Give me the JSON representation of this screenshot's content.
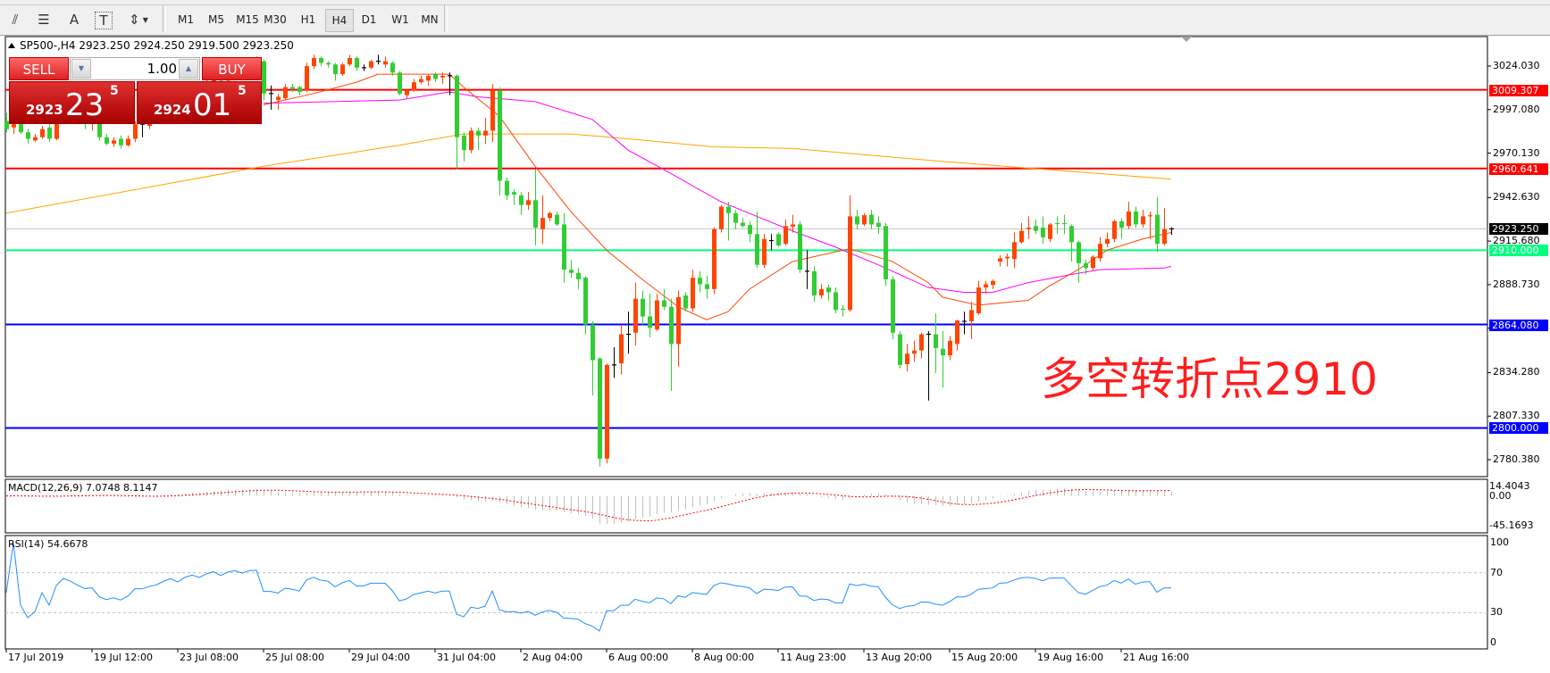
{
  "toolbar": {
    "icons": [
      "elliott-wave-icon",
      "fibonacci-icon",
      "text-icon",
      "text-label-icon",
      "arrows-icon"
    ],
    "icon_glyphs": [
      "⫽",
      "☰",
      "A",
      "T",
      "⇕"
    ],
    "timeframes": [
      "M1",
      "M5",
      "M15",
      "M30",
      "H1",
      "H4",
      "D1",
      "W1",
      "MN"
    ],
    "selected_timeframe": "H4"
  },
  "chart": {
    "symbol_header": "SP500-,H4  2923.250 2924.250 2919.500 2923.250",
    "colors": {
      "bull": "#ff4500",
      "bear": "#32cd32",
      "doji": "#000000",
      "ma_fast": "#ff4500",
      "ma_mid": "#ff00ff",
      "ma_slow": "#ffa500",
      "current_price": "#c0c0c0"
    },
    "price_axis": [
      "3024.030",
      "2997.080",
      "2970.130",
      "2942.630",
      "2915.680",
      "2888.730",
      "2861.780",
      "2834.280",
      "2807.330",
      "2780.380"
    ],
    "hlines": [
      {
        "price": 3009.307,
        "label": "3009.307",
        "color": "#ff0000"
      },
      {
        "price": 2960.641,
        "label": "2960.641",
        "color": "#ff0000"
      },
      {
        "price": 2923.25,
        "label": "2923.250",
        "color": "#000000",
        "line": "#c0c0c0"
      },
      {
        "price": 2910.0,
        "label": "2910.000",
        "color": "#00ff7f"
      },
      {
        "price": 2864.08,
        "label": "2864.080",
        "color": "#0000ff"
      },
      {
        "price": 2800.0,
        "label": "2800.000",
        "color": "#0000ff"
      }
    ],
    "annotation": "多空转折点2910",
    "time_labels": [
      "17 Jul 2019",
      "19 Jul 12:00",
      "23 Jul 08:00",
      "25 Jul 08:00",
      "29 Jul 04:00",
      "31 Jul 04:00",
      "2 Aug 04:00",
      "6 Aug 00:00",
      "8 Aug 00:00",
      "11 Aug 23:00",
      "13 Aug 20:00",
      "15 Aug 20:00",
      "19 Aug 16:00",
      "21 Aug 16:00"
    ]
  },
  "trade_panel": {
    "sell_label": "SELL",
    "buy_label": "BUY",
    "lot": "1.00",
    "sell_price_small": "2923",
    "sell_price_big": "23",
    "sell_price_sup": "5",
    "buy_price_small": "2924",
    "buy_price_big": "01",
    "buy_price_sup": "5"
  },
  "macd": {
    "title": "MACD(12,26,9) 7.0748 8.1147",
    "axis": [
      "14.4043",
      "0.00",
      "-45.1693"
    ],
    "range": [
      -45.1693,
      14.4043
    ]
  },
  "rsi": {
    "title": "RSI(14) 54.6678",
    "axis": [
      "100",
      "70",
      "30",
      "0"
    ],
    "levels": [
      70,
      30
    ]
  },
  "chart_data": {
    "type": "candlestick",
    "ylim": [
      2780.38,
      3024.03
    ],
    "ohlc": [
      [
        2990,
        2995,
        2983,
        2985
      ],
      [
        2986,
        2991,
        2982,
        2988
      ],
      [
        2988,
        2989,
        2982,
        2983
      ],
      [
        2983,
        2985,
        2976,
        2979
      ],
      [
        2978,
        2982,
        2977,
        2980
      ],
      [
        2980,
        2987,
        2979,
        2985
      ],
      [
        2986,
        2988,
        2977,
        2979
      ],
      [
        2979,
        2993,
        2978,
        2990
      ],
      [
        2990,
        3000,
        2988,
        2997
      ],
      [
        2997,
        3003,
        2992,
        2995
      ],
      [
        2995,
        2999,
        2989,
        2992
      ],
      [
        2992,
        2996,
        2985,
        2989
      ],
      [
        2989,
        2993,
        2984,
        2990
      ],
      [
        2990,
        2991,
        2978,
        2980
      ],
      [
        2980,
        2982,
        2975,
        2976
      ],
      [
        2976,
        2980,
        2974,
        2978
      ],
      [
        2979,
        2981,
        2973,
        2975
      ],
      [
        2975,
        2981,
        2974,
        2979
      ],
      [
        2979,
        2990,
        2977,
        2988
      ],
      [
        2988,
        2992,
        2980,
        2988
      ],
      [
        2987,
        2994,
        2985,
        2991
      ],
      [
        2991,
        2996,
        2989,
        2993
      ],
      [
        2993,
        3000,
        2991,
        2998
      ],
      [
        2998,
        3004,
        2995,
        3002
      ],
      [
        3002,
        3006,
        2996,
        2999
      ],
      [
        2999,
        3008,
        2998,
        3006
      ],
      [
        3006,
        3012,
        3003,
        3010
      ],
      [
        3010,
        3014,
        3005,
        3008
      ],
      [
        3008,
        3016,
        3007,
        3014
      ],
      [
        3014,
        3020,
        3011,
        3018
      ],
      [
        3018,
        3022,
        3012,
        3015
      ],
      [
        3015,
        3023,
        3014,
        3021
      ],
      [
        3021,
        3026,
        3018,
        3024
      ],
      [
        3024,
        3028,
        3019,
        3022
      ],
      [
        3022,
        3029,
        3020,
        3027
      ],
      [
        3027,
        3030,
        3024,
        3027.5
      ],
      [
        3027,
        3028,
        3003,
        3007
      ],
      [
        3007,
        3012,
        2997,
        3007
      ],
      [
        3003,
        3007,
        2997,
        3005
      ],
      [
        3004,
        3013,
        3003,
        3011
      ],
      [
        3011,
        3013,
        3008,
        3010
      ],
      [
        3011,
        3012,
        3006,
        3008
      ],
      [
        3009,
        3026,
        3008,
        3024
      ],
      [
        3024,
        3031,
        3022,
        3029
      ],
      [
        3029,
        3030,
        3024,
        3026
      ],
      [
        3026,
        3027,
        3023,
        3025
      ],
      [
        3025,
        3026,
        3015,
        3019
      ],
      [
        3019,
        3026,
        3018,
        3025
      ],
      [
        3025,
        3031,
        3024,
        3029
      ],
      [
        3029,
        3030,
        3021,
        3023
      ],
      [
        3023,
        3025,
        3021,
        3023
      ],
      [
        3023,
        3028,
        3022,
        3027
      ],
      [
        3027,
        3031,
        3025,
        3027
      ],
      [
        3025,
        3030,
        3023,
        3027
      ],
      [
        3026,
        3027,
        3018,
        3020
      ],
      [
        3020,
        3021,
        3006,
        3007
      ],
      [
        3006,
        3010,
        3004,
        3009
      ],
      [
        3009,
        3016,
        3008,
        3014
      ],
      [
        3014,
        3018,
        3013,
        3016
      ],
      [
        3015,
        3019,
        3012,
        3018
      ],
      [
        3019,
        3020,
        3014,
        3016
      ],
      [
        3017,
        3020,
        3013,
        3018
      ],
      [
        3018,
        3020,
        3006,
        3018
      ],
      [
        3018,
        3019,
        2960,
        2980
      ],
      [
        2981,
        2983,
        2965,
        2972
      ],
      [
        2972,
        2986,
        2970,
        2984
      ],
      [
        2984,
        2986,
        2972,
        2981
      ],
      [
        2981,
        2992,
        2976,
        2984
      ],
      [
        2984,
        3013,
        2977,
        3009
      ],
      [
        3009,
        3011,
        2944,
        2953
      ],
      [
        2953,
        2955,
        2941,
        2944
      ],
      [
        2946,
        2948,
        2938,
        2944.5
      ],
      [
        2944,
        2946,
        2932,
        2938
      ],
      [
        2938,
        2946,
        2935,
        2941
      ],
      [
        2941,
        2960,
        2913,
        2924
      ],
      [
        2923,
        2944,
        2914,
        2930
      ],
      [
        2930,
        2934,
        2928,
        2933
      ],
      [
        2932,
        2934,
        2925,
        2926
      ],
      [
        2926,
        2933,
        2890,
        2898
      ],
      [
        2898,
        2904,
        2893,
        2896
      ],
      [
        2896,
        2899,
        2886,
        2892
      ],
      [
        2893,
        2894,
        2858,
        2864
      ],
      [
        2864,
        2866,
        2820,
        2842
      ],
      [
        2843,
        2844,
        2776,
        2781
      ],
      [
        2781,
        2840,
        2778,
        2839
      ],
      [
        2839,
        2850,
        2831,
        2839
      ],
      [
        2840,
        2864,
        2833,
        2858
      ],
      [
        2858,
        2872,
        2846,
        2858
      ],
      [
        2859,
        2890,
        2851,
        2880
      ],
      [
        2880,
        2885,
        2864,
        2869
      ],
      [
        2869,
        2883,
        2856,
        2862
      ],
      [
        2861,
        2883,
        2860,
        2879
      ],
      [
        2879,
        2886,
        2873,
        2875
      ],
      [
        2875,
        2880,
        2823,
        2852
      ],
      [
        2852,
        2885,
        2838,
        2881
      ],
      [
        2882,
        2884,
        2872,
        2874
      ],
      [
        2874,
        2898,
        2872,
        2893
      ],
      [
        2893,
        2897,
        2884,
        2889
      ],
      [
        2889,
        2894,
        2880,
        2886
      ],
      [
        2886,
        2924,
        2883,
        2923
      ],
      [
        2923,
        2938,
        2921,
        2937
      ],
      [
        2937,
        2940,
        2916,
        2933
      ],
      [
        2933,
        2935,
        2923,
        2927
      ],
      [
        2927,
        2930,
        2924,
        2925
      ],
      [
        2925.6,
        2928,
        2915,
        2920
      ],
      [
        2920,
        2934,
        2899,
        2901
      ],
      [
        2901,
        2920,
        2899,
        2917
      ],
      [
        2916,
        2920,
        2910,
        2916
      ],
      [
        2920,
        2921,
        2912,
        2913
      ],
      [
        2914,
        2929,
        2913,
        2925
      ],
      [
        2924.6,
        2932,
        2921,
        2926
      ],
      [
        2926,
        2928,
        2896,
        2898
      ],
      [
        2897,
        2910,
        2886,
        2897
      ],
      [
        2897,
        2900,
        2878,
        2882
      ],
      [
        2882,
        2889,
        2880,
        2886
      ],
      [
        2887,
        2889,
        2879,
        2884
      ],
      [
        2884,
        2887,
        2871,
        2873
      ],
      [
        2873.5,
        2876,
        2869,
        2873
      ],
      [
        2873,
        2944,
        2872,
        2931
      ],
      [
        2931,
        2935,
        2923,
        2926
      ],
      [
        2926,
        2933,
        2925,
        2931.7
      ],
      [
        2932,
        2935,
        2923,
        2926
      ],
      [
        2927,
        2931,
        2920,
        2924.5
      ],
      [
        2925,
        2927,
        2888,
        2892
      ],
      [
        2892,
        2894,
        2855,
        2859
      ],
      [
        2858,
        2860,
        2837,
        2839
      ],
      [
        2839.5,
        2852,
        2835,
        2846
      ],
      [
        2846,
        2854,
        2841,
        2848
      ],
      [
        2848,
        2859,
        2843,
        2858
      ],
      [
        2858,
        2860,
        2817,
        2858
      ],
      [
        2858,
        2871,
        2834,
        2849.5
      ],
      [
        2849,
        2860,
        2825,
        2845
      ],
      [
        2845,
        2857,
        2842,
        2854
      ],
      [
        2852,
        2867,
        2848,
        2866.5
      ],
      [
        2866,
        2872,
        2858,
        2866
      ],
      [
        2866,
        2878,
        2855,
        2873
      ],
      [
        2871,
        2891,
        2870,
        2887
      ],
      [
        2887,
        2891,
        2883,
        2889
      ],
      [
        2888.5,
        2892,
        2886,
        2891
      ],
      [
        2903,
        2907,
        2900,
        2905
      ],
      [
        2905,
        2908,
        2900,
        2906
      ],
      [
        2904.6,
        2921,
        2899,
        2915
      ],
      [
        2915,
        2927,
        2914,
        2922
      ],
      [
        2923,
        2931,
        2917,
        2924
      ],
      [
        2925,
        2929,
        2920,
        2922
      ],
      [
        2924,
        2931,
        2914,
        2918
      ],
      [
        2917,
        2927,
        2915,
        2926
      ],
      [
        2926.5,
        2931,
        2920,
        2926
      ],
      [
        2926.5,
        2932,
        2920,
        2926
      ],
      [
        2925,
        2926,
        2903,
        2915
      ],
      [
        2915,
        2916,
        2890,
        2902
      ],
      [
        2902,
        2904,
        2895,
        2899
      ],
      [
        2899,
        2907,
        2897,
        2906
      ],
      [
        2905,
        2918,
        2903,
        2914
      ],
      [
        2914,
        2921,
        2912,
        2917
      ],
      [
        2917,
        2929,
        2915,
        2928
      ],
      [
        2928,
        2930,
        2917,
        2924
      ],
      [
        2925,
        2940,
        2923,
        2934
      ],
      [
        2934,
        2937,
        2924,
        2926
      ],
      [
        2926,
        2935,
        2924,
        2931
      ],
      [
        2931,
        2934,
        2917,
        2931.7
      ],
      [
        2932,
        2943,
        2909,
        2914
      ],
      [
        2914,
        2936,
        2913,
        2923
      ],
      [
        2923.25,
        2924.25,
        2919.5,
        2923.25
      ]
    ],
    "ma_fast": [
      [
        36,
        3000
      ],
      [
        43,
        3007
      ],
      [
        49,
        3014
      ],
      [
        52,
        3019
      ],
      [
        62,
        3019
      ],
      [
        64,
        3011
      ],
      [
        69,
        2993
      ],
      [
        74,
        2962
      ],
      [
        79,
        2934
      ],
      [
        84,
        2910
      ],
      [
        89,
        2892
      ],
      [
        94,
        2875
      ],
      [
        98,
        2867
      ],
      [
        101,
        2872
      ],
      [
        104,
        2886
      ],
      [
        110,
        2903
      ],
      [
        115,
        2908
      ],
      [
        118,
        2911
      ],
      [
        124,
        2903
      ],
      [
        129,
        2890
      ],
      [
        131,
        2881
      ],
      [
        136,
        2876
      ],
      [
        143,
        2879
      ],
      [
        146,
        2888
      ],
      [
        150,
        2898
      ],
      [
        154,
        2910
      ],
      [
        159,
        2917
      ],
      [
        163,
        2921
      ]
    ],
    "ma_mid": [
      [
        36,
        3001
      ],
      [
        55,
        3003
      ],
      [
        62,
        3008
      ],
      [
        66,
        3005
      ],
      [
        74,
        3002
      ],
      [
        82,
        2991
      ],
      [
        87,
        2972
      ],
      [
        92,
        2960
      ],
      [
        100,
        2940
      ],
      [
        110,
        2922
      ],
      [
        116,
        2912
      ],
      [
        122,
        2901
      ],
      [
        129,
        2887
      ],
      [
        134,
        2884
      ],
      [
        138,
        2884
      ],
      [
        143,
        2890
      ],
      [
        149,
        2895
      ],
      [
        153,
        2898
      ],
      [
        162,
        2899
      ],
      [
        163,
        2900
      ]
    ],
    "ma_slow": [
      [
        0,
        2933
      ],
      [
        36,
        2962
      ],
      [
        55,
        2975
      ],
      [
        64,
        2982
      ],
      [
        79,
        2982
      ],
      [
        87,
        2979
      ],
      [
        99,
        2974
      ],
      [
        110,
        2973
      ],
      [
        131,
        2965
      ],
      [
        163,
        2954
      ]
    ]
  }
}
